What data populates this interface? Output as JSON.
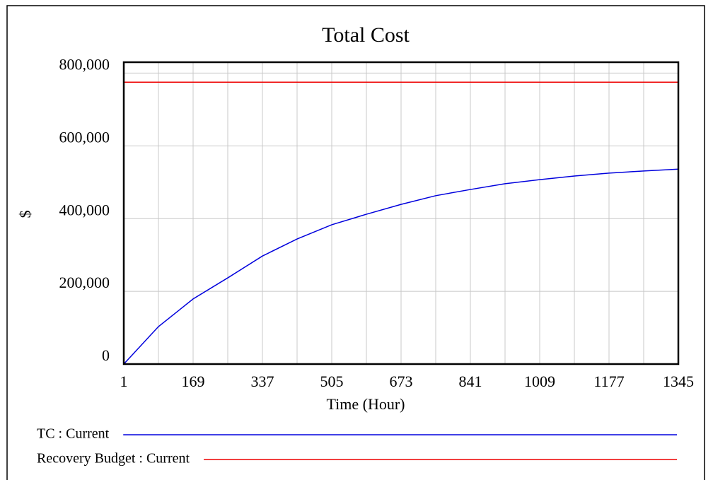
{
  "chart_data": {
    "type": "line",
    "title": "Total Cost",
    "x_label": "Time (Hour)",
    "y_label": "$",
    "x": [
      1,
      85,
      169,
      253,
      337,
      421,
      505,
      589,
      673,
      757,
      841,
      925,
      1009,
      1093,
      1177,
      1261,
      1345
    ],
    "series": [
      {
        "name": "TC : Current",
        "color": "#0000dd",
        "values": [
          0,
          103000,
          179000,
          237000,
          297000,
          344000,
          383000,
          412000,
          439000,
          463000,
          480000,
          496000,
          507000,
          517000,
          525000,
          531000,
          536000
        ]
      },
      {
        "name": "Recovery Budget : Current",
        "color": "#ee0000",
        "values": [
          775000,
          775000,
          775000,
          775000,
          775000,
          775000,
          775000,
          775000,
          775000,
          775000,
          775000,
          775000,
          775000,
          775000,
          775000,
          775000,
          775000
        ]
      }
    ],
    "xlim": [
      1,
      1345
    ],
    "xticks": [
      1,
      169,
      337,
      505,
      673,
      841,
      1009,
      1177,
      1345
    ],
    "ylim": [
      0,
      830000
    ],
    "yticks": [
      {
        "value": 0,
        "label": "0"
      },
      {
        "value": 200000,
        "label": "200,000"
      },
      {
        "value": 400000,
        "label": "400,000"
      },
      {
        "value": 600000,
        "label": "600,000"
      },
      {
        "value": 800000,
        "label": "800,000"
      }
    ],
    "grid": true
  }
}
